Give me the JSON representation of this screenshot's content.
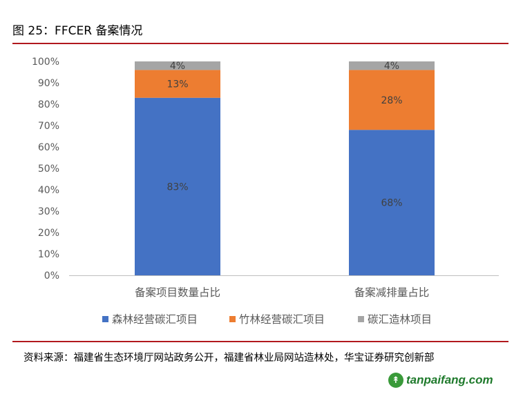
{
  "figure": {
    "title": "图 25：FFCER 备案情况",
    "source": "资料来源：福建省生态环境厅网站政务公开，福建省林业局网站造林处，华宝证券研究创新部",
    "watermark": "tanpaifang.com",
    "watermark_icon": "leaf-logo-icon"
  },
  "chart_data": {
    "type": "bar",
    "stacked": true,
    "percent": true,
    "categories": [
      "备案项目数量占比",
      "备案减排量占比"
    ],
    "series": [
      {
        "name": "森林经营碳汇项目",
        "values": [
          83,
          68
        ],
        "labels": [
          "83%",
          "68%"
        ],
        "color": "#4472c4"
      },
      {
        "name": "竹林经营碳汇项目",
        "values": [
          13,
          28
        ],
        "labels": [
          "13%",
          "28%"
        ],
        "color": "#ed7d31"
      },
      {
        "name": "碳汇造林项目",
        "values": [
          4,
          4
        ],
        "labels": [
          "4%",
          "4%"
        ],
        "color": "#a5a5a5"
      }
    ],
    "ylim": [
      0,
      100
    ],
    "yticks": [
      "0%",
      "10%",
      "20%",
      "30%",
      "40%",
      "50%",
      "60%",
      "70%",
      "80%",
      "90%",
      "100%"
    ],
    "grid": false,
    "legend": "bottom"
  }
}
